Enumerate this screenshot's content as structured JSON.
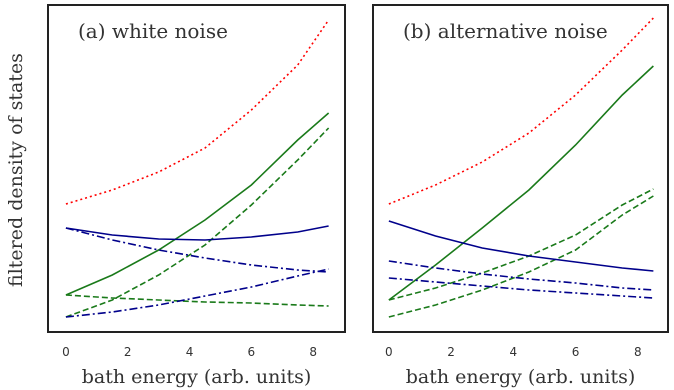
{
  "chart_data": [
    {
      "type": "line",
      "title": "(a) white noise",
      "xlabel": "bath energy (arb. units)",
      "ylabel": "filtered density of states",
      "x": [
        0,
        1.5,
        3,
        4.5,
        6,
        7.5,
        8.5
      ],
      "xlim": [
        -0.58,
        9.03
      ],
      "xticks": [
        0,
        2,
        4,
        6,
        8
      ],
      "ylim": [
        0,
        327
      ],
      "series": [
        {
          "color": "#ff0000",
          "style": "dotted",
          "values": [
            128,
            142,
            160,
            184,
            222,
            267,
            312
          ]
        },
        {
          "color": "#1a7a1a",
          "style": "solid",
          "values": [
            37,
            57,
            82,
            112,
            147,
            192,
            219
          ]
        },
        {
          "color": "#1a7a1a",
          "style": "dashed",
          "values": [
            15,
            32,
            57,
            87,
            127,
            172,
            204
          ]
        },
        {
          "color": "#1a7a1a",
          "style": "dashed",
          "values": [
            37,
            34,
            32,
            30,
            29,
            27,
            26
          ]
        },
        {
          "color": "#00008b",
          "style": "solid",
          "values": [
            104,
            97,
            93,
            92,
            95,
            100,
            106
          ]
        },
        {
          "color": "#00008b",
          "style": "dashdot",
          "values": [
            104,
            92,
            82,
            74,
            67,
            62,
            60
          ]
        },
        {
          "color": "#00008b",
          "style": "dashdot",
          "values": [
            15,
            20,
            27,
            36,
            45,
            56,
            63
          ]
        }
      ]
    },
    {
      "type": "line",
      "title": "(b) alternative noise",
      "xlabel": "bath energy (arb. units)",
      "x": [
        0,
        1.5,
        3,
        4.5,
        6,
        7.5,
        8.5
      ],
      "xlim": [
        -0.51,
        8.97
      ],
      "xticks": [
        0,
        2,
        4,
        6,
        8
      ],
      "ylim": [
        0,
        327
      ],
      "series": [
        {
          "color": "#ff0000",
          "style": "dotted",
          "values": [
            128,
            147,
            170,
            199,
            237,
            282,
            314
          ]
        },
        {
          "color": "#1a7a1a",
          "style": "solid",
          "values": [
            32,
            67,
            104,
            142,
            187,
            237,
            266
          ]
        },
        {
          "color": "#1a7a1a",
          "style": "dashed",
          "values": [
            32,
            44,
            59,
            76,
            97,
            127,
            143
          ]
        },
        {
          "color": "#1a7a1a",
          "style": "dashed",
          "values": [
            15,
            27,
            42,
            60,
            82,
            117,
            136
          ]
        },
        {
          "color": "#00008b",
          "style": "solid",
          "values": [
            111,
            96,
            84,
            76,
            70,
            64,
            61
          ]
        },
        {
          "color": "#00008b",
          "style": "dashdot",
          "values": [
            71,
            64,
            58,
            53,
            49,
            44,
            42
          ]
        },
        {
          "color": "#00008b",
          "style": "dashdot",
          "values": [
            54,
            50,
            46,
            42,
            39,
            36,
            34
          ]
        }
      ]
    }
  ]
}
